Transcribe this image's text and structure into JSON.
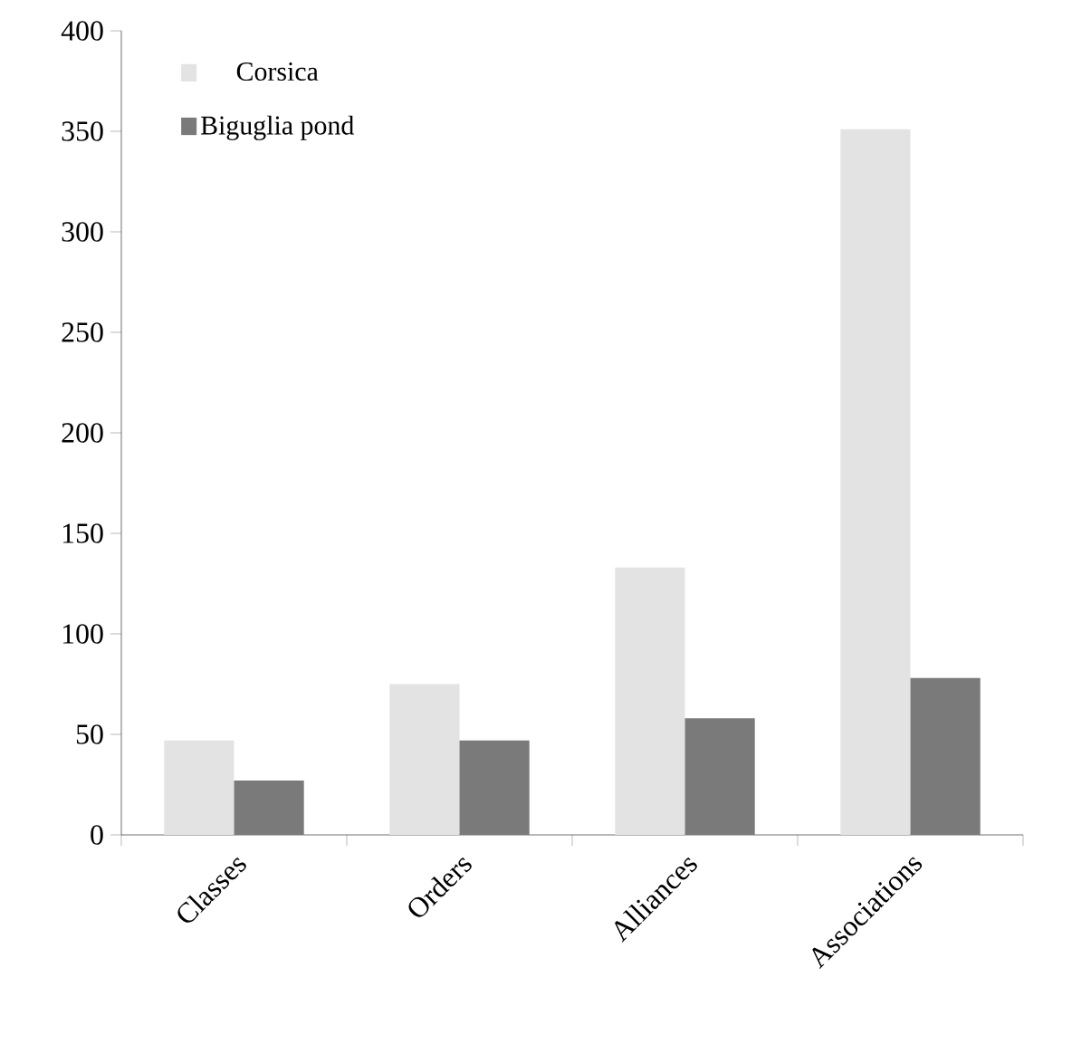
{
  "chart_data": {
    "type": "bar",
    "categories": [
      "Classes",
      "Orders",
      "Alliances",
      "Associations"
    ],
    "series": [
      {
        "name": "Corsica",
        "color": "#e3e3e3",
        "values": [
          47,
          75,
          133,
          351
        ]
      },
      {
        "name": "Biguglia pond",
        "color": "#7a7a7a",
        "values": [
          27,
          47,
          58,
          78
        ]
      }
    ],
    "ylim": [
      0,
      400
    ],
    "yticks": [
      0,
      50,
      100,
      150,
      200,
      250,
      300,
      350,
      400
    ],
    "grid": false,
    "legend": "top left"
  }
}
